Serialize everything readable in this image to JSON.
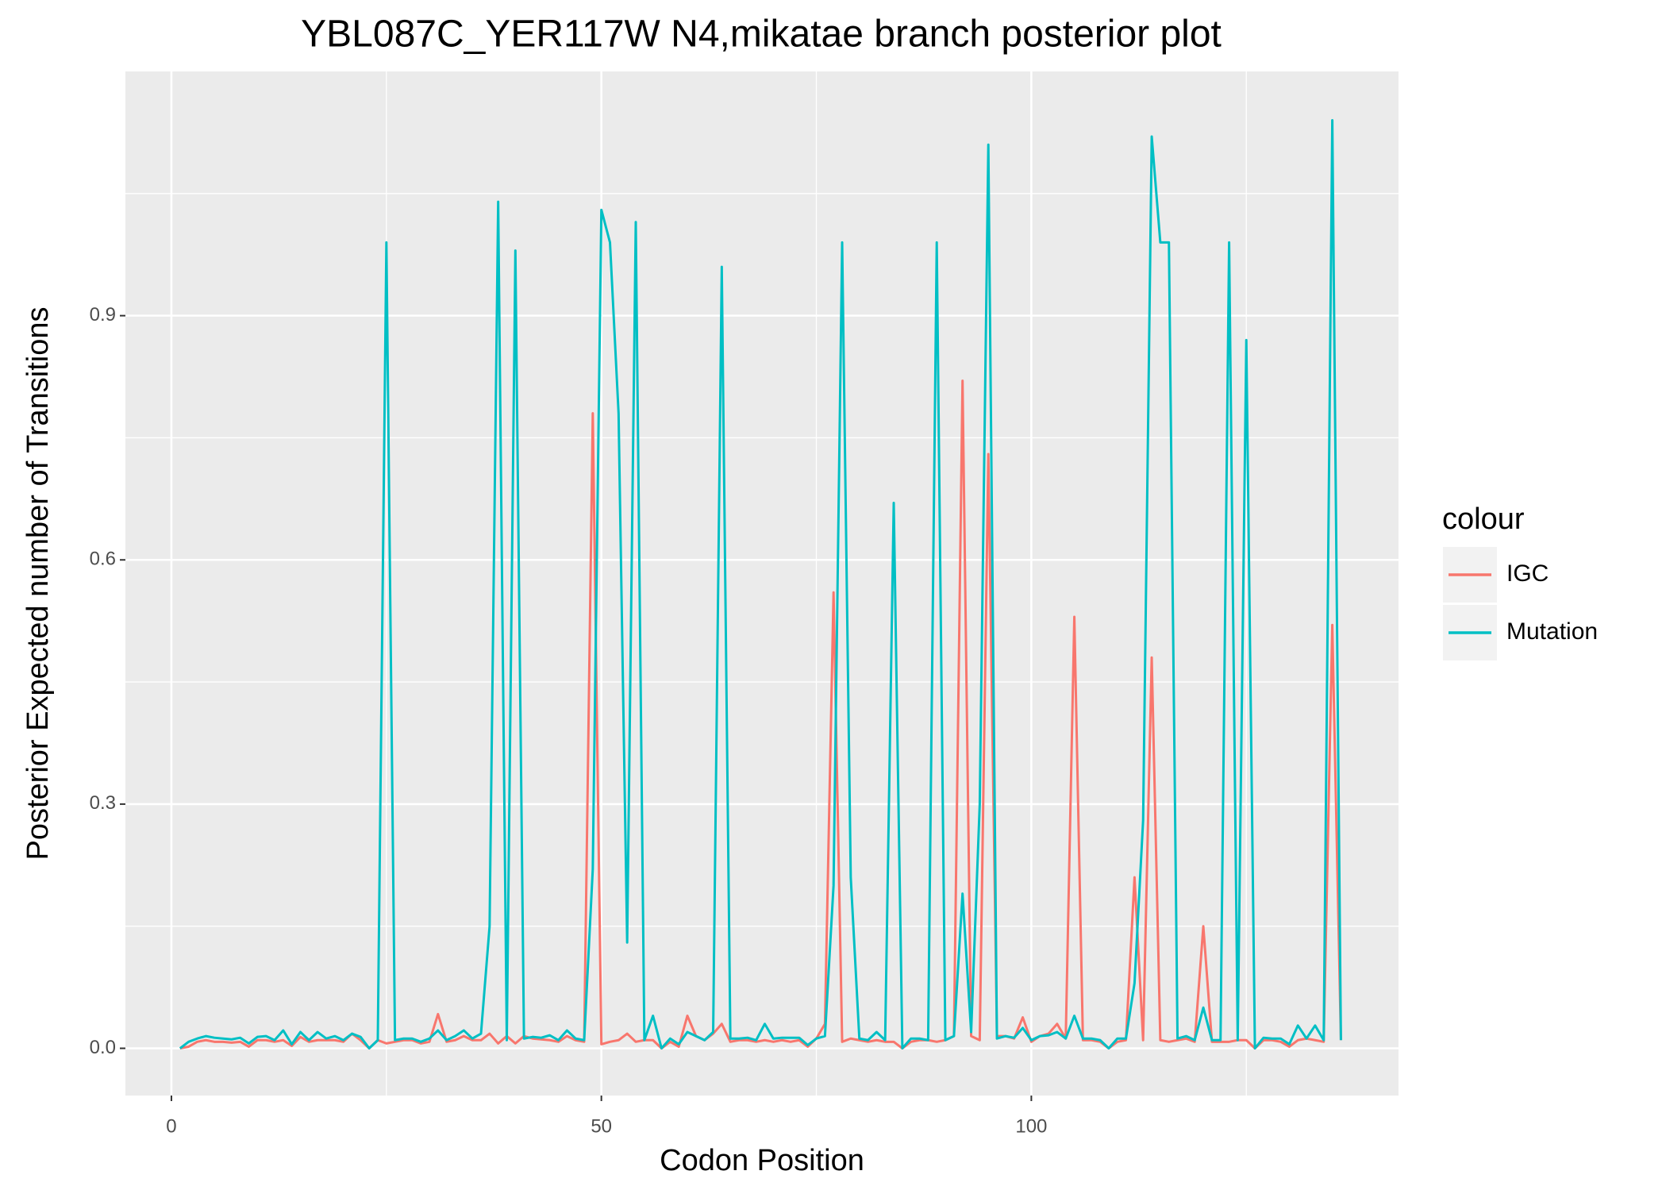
{
  "chart_data": {
    "type": "line",
    "title": "YBL087C_YER117W N4,mikatae branch posterior plot",
    "x_label": "Codon Position",
    "y_label": "Posterior Expected number of Transitions",
    "legend_title": "colour",
    "legend_position": "right",
    "grid": true,
    "xlim": [
      -5.35,
      142.7
    ],
    "ylim": [
      -0.058,
      1.2
    ],
    "xticks": [
      0,
      50,
      100
    ],
    "yticks": [
      {
        "value": 0,
        "label": "0.0"
      },
      0.3,
      0.6,
      0.9
    ],
    "x": [
      1,
      2,
      3,
      4,
      5,
      6,
      7,
      8,
      9,
      10,
      11,
      12,
      13,
      14,
      15,
      16,
      17,
      18,
      19,
      20,
      21,
      22,
      23,
      24,
      25,
      26,
      27,
      28,
      29,
      30,
      31,
      32,
      33,
      34,
      35,
      36,
      37,
      38,
      39,
      40,
      41,
      42,
      43,
      44,
      45,
      46,
      47,
      48,
      49,
      50,
      51,
      52,
      53,
      54,
      55,
      56,
      57,
      58,
      59,
      60,
      61,
      62,
      63,
      64,
      65,
      66,
      67,
      68,
      69,
      70,
      71,
      72,
      73,
      74,
      75,
      76,
      77,
      78,
      79,
      80,
      81,
      82,
      83,
      84,
      85,
      86,
      87,
      88,
      89,
      90,
      91,
      92,
      93,
      94,
      95,
      96,
      97,
      98,
      99,
      100,
      101,
      102,
      103,
      104,
      105,
      106,
      107,
      108,
      109,
      110,
      111,
      112,
      113,
      114,
      115,
      116,
      117,
      118,
      119,
      120,
      121,
      122,
      123,
      124,
      125,
      126,
      127,
      128,
      129,
      130,
      131,
      132,
      133,
      134,
      135,
      136
    ],
    "series": [
      {
        "name": "IGC",
        "color": "#F8766D",
        "values": [
          0.0,
          0.002,
          0.008,
          0.01,
          0.008,
          0.008,
          0.007,
          0.008,
          0.002,
          0.01,
          0.01,
          0.008,
          0.01,
          0.003,
          0.014,
          0.008,
          0.01,
          0.01,
          0.01,
          0.008,
          0.018,
          0.01,
          0.0,
          0.01,
          0.006,
          0.008,
          0.01,
          0.01,
          0.006,
          0.008,
          0.042,
          0.008,
          0.01,
          0.015,
          0.01,
          0.01,
          0.018,
          0.006,
          0.015,
          0.006,
          0.015,
          0.012,
          0.011,
          0.01,
          0.008,
          0.015,
          0.01,
          0.008,
          0.78,
          0.005,
          0.008,
          0.01,
          0.018,
          0.008,
          0.01,
          0.01,
          0.0,
          0.008,
          0.002,
          0.04,
          0.015,
          0.01,
          0.018,
          0.03,
          0.008,
          0.01,
          0.01,
          0.008,
          0.01,
          0.008,
          0.01,
          0.008,
          0.01,
          0.002,
          0.012,
          0.03,
          0.56,
          0.008,
          0.012,
          0.01,
          0.008,
          0.01,
          0.008,
          0.008,
          0.0,
          0.008,
          0.01,
          0.01,
          0.008,
          0.01,
          0.015,
          0.82,
          0.015,
          0.01,
          0.73,
          0.015,
          0.015,
          0.012,
          0.038,
          0.008,
          0.015,
          0.018,
          0.03,
          0.012,
          0.53,
          0.01,
          0.01,
          0.008,
          0.0,
          0.008,
          0.01,
          0.21,
          0.01,
          0.48,
          0.01,
          0.008,
          0.01,
          0.012,
          0.008,
          0.15,
          0.008,
          0.008,
          0.008,
          0.01,
          0.01,
          0.0,
          0.01,
          0.01,
          0.008,
          0.002,
          0.01,
          0.012,
          0.01,
          0.008,
          0.52,
          0.01
        ]
      },
      {
        "name": "Mutation",
        "color": "#00BFC4",
        "values": [
          0.0,
          0.008,
          0.012,
          0.015,
          0.013,
          0.012,
          0.011,
          0.013,
          0.006,
          0.014,
          0.015,
          0.01,
          0.022,
          0.005,
          0.02,
          0.01,
          0.02,
          0.012,
          0.015,
          0.01,
          0.018,
          0.014,
          0.0,
          0.01,
          0.99,
          0.01,
          0.012,
          0.012,
          0.008,
          0.012,
          0.022,
          0.01,
          0.015,
          0.022,
          0.012,
          0.018,
          0.15,
          1.04,
          0.01,
          0.98,
          0.012,
          0.014,
          0.013,
          0.016,
          0.01,
          0.022,
          0.012,
          0.01,
          0.22,
          1.03,
          0.99,
          0.78,
          0.13,
          1.015,
          0.01,
          0.04,
          0.0,
          0.012,
          0.005,
          0.02,
          0.015,
          0.01,
          0.02,
          0.96,
          0.012,
          0.012,
          0.013,
          0.01,
          0.03,
          0.012,
          0.013,
          0.013,
          0.013,
          0.004,
          0.012,
          0.015,
          0.2,
          0.99,
          0.21,
          0.012,
          0.01,
          0.02,
          0.01,
          0.67,
          0.0,
          0.012,
          0.012,
          0.01,
          0.99,
          0.01,
          0.015,
          0.19,
          0.02,
          0.3,
          1.11,
          0.012,
          0.015,
          0.013,
          0.025,
          0.01,
          0.015,
          0.016,
          0.02,
          0.012,
          0.04,
          0.012,
          0.012,
          0.01,
          0.0,
          0.012,
          0.012,
          0.08,
          0.28,
          1.12,
          0.99,
          0.99,
          0.012,
          0.015,
          0.01,
          0.05,
          0.01,
          0.01,
          0.99,
          0.01,
          0.87,
          0.0,
          0.013,
          0.012,
          0.012,
          0.005,
          0.028,
          0.012,
          0.028,
          0.01,
          1.14,
          0.01
        ]
      }
    ]
  }
}
